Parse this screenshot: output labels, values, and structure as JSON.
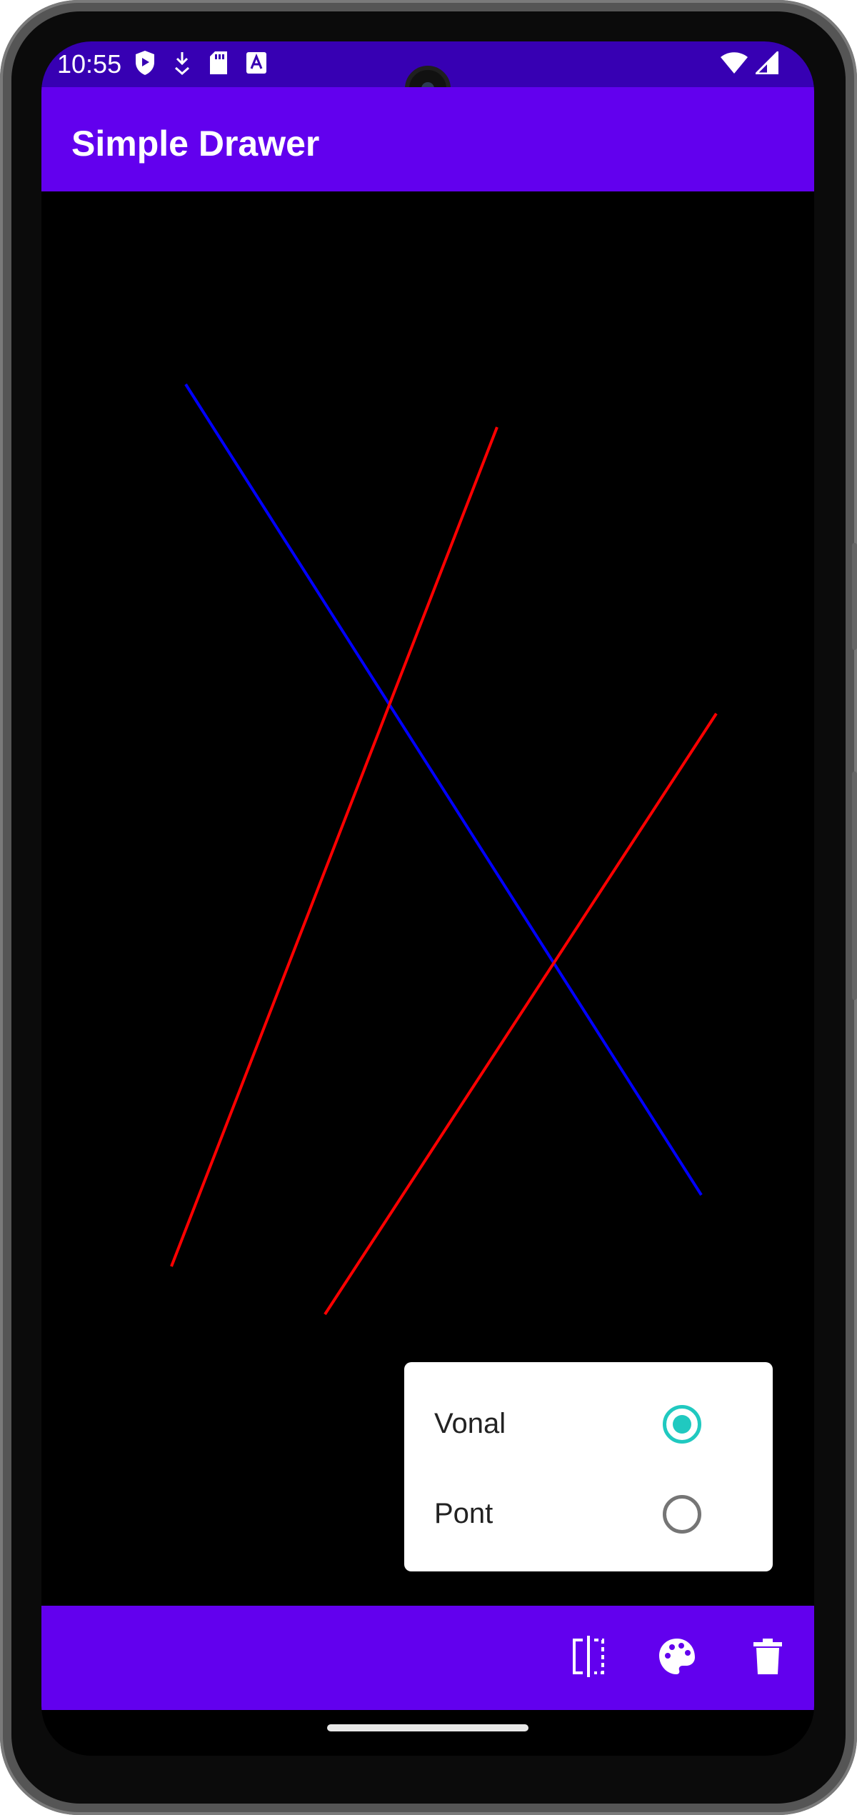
{
  "status_bar": {
    "time": "10:55",
    "left_icons": [
      "shield-icon",
      "download-icon",
      "sd-card-icon",
      "text-icon"
    ],
    "right_icons": [
      "wifi-icon",
      "signal-icon"
    ]
  },
  "app_bar": {
    "title": "Simple Drawer"
  },
  "canvas": {
    "line_colors": {
      "red": "#ff0000",
      "blue": "#0000ff"
    }
  },
  "popup_menu": {
    "items": [
      {
        "label": "Vonal",
        "selected": true
      },
      {
        "label": "Pont",
        "selected": false
      }
    ]
  },
  "bottom_bar": {
    "actions": [
      "flip-icon",
      "palette-icon",
      "trash-icon"
    ]
  },
  "colors": {
    "status_bar": "#3700b3",
    "primary": "#6200ee",
    "accent": "#20c9c0"
  }
}
